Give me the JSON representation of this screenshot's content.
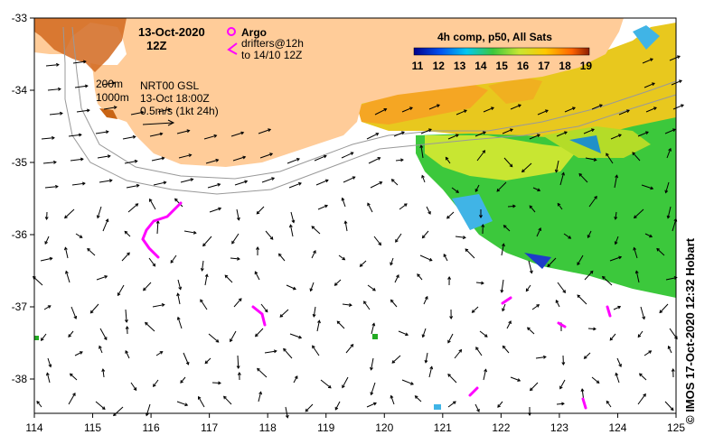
{
  "map": {
    "date": "13-Oct-2020",
    "hour": "12Z",
    "argo_label": "Argo",
    "drifters_label": "drifters@12h",
    "drifters_range": "to 14/10 12Z",
    "isobath_200": "200m",
    "isobath_1000": "1000m",
    "current_source": "NRT00 GSL",
    "current_time": "13-Oct 18:00Z",
    "current_scale": "0.5m/s (1kt 24h)",
    "colorbar_title": "4h comp, p50, All Sats",
    "colorbar_ticks": [
      "11",
      "12",
      "13",
      "14",
      "15",
      "16",
      "17",
      "18",
      "19"
    ],
    "x_ticks": [
      "114",
      "115",
      "116",
      "117",
      "118",
      "119",
      "120",
      "121",
      "122",
      "123",
      "124",
      "125"
    ],
    "y_ticks": [
      "-33",
      "-34",
      "-35",
      "-36",
      "-37",
      "-38"
    ],
    "credit": "© IMOS 17-Oct-2020 12:32 Hobart"
  },
  "colors": {
    "land": "#FFCC99",
    "drifter": "#FF00FF",
    "sst_warm": "#F5A623",
    "sst_mid": "#C8E632",
    "sst_cool": "#3CC83C",
    "ocean": "#FFFFFF"
  }
}
